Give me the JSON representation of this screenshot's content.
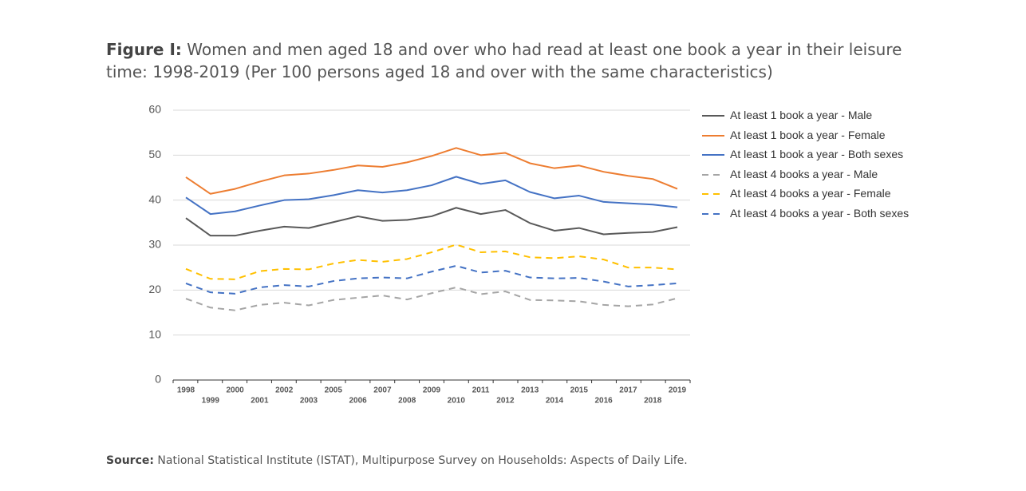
{
  "chart_data": {
    "type": "line",
    "title_label": "Figure I:",
    "title": "Women and men aged 18 and over who had read at least one book a year in their leisure time: 1998-2019 (Per 100 persons aged 18 and over with the same characteristics)",
    "source_label": "Source:",
    "source": "National Statistical Institute (ISTAT), Multipurpose Survey on Households: Aspects of Daily Life.",
    "categories": [
      "1998",
      "1999",
      "2000",
      "2001",
      "2002",
      "2003",
      "2005",
      "2006",
      "2007",
      "2008",
      "2009",
      "2010",
      "2011",
      "2012",
      "2013",
      "2014",
      "2015",
      "2016",
      "2017",
      "2018",
      "2019"
    ],
    "ylim": [
      0,
      60
    ],
    "yticks": [
      0,
      10,
      20,
      30,
      40,
      50,
      60
    ],
    "grid": true,
    "legend": "right",
    "series": [
      {
        "name": "At least 1 book a year - Male",
        "color": "#595959",
        "dash": false,
        "values": [
          36.0,
          32.1,
          32.1,
          33.2,
          34.1,
          33.8,
          35.1,
          36.4,
          35.4,
          35.6,
          36.4,
          38.3,
          36.9,
          37.8,
          34.9,
          33.2,
          33.8,
          32.4,
          32.7,
          32.9,
          34.0
        ]
      },
      {
        "name": "At least 1 book a year - Female",
        "color": "#ed7d31",
        "dash": false,
        "values": [
          45.1,
          41.4,
          42.5,
          44.1,
          45.5,
          45.9,
          46.7,
          47.7,
          47.4,
          48.4,
          49.8,
          51.6,
          50.0,
          50.5,
          48.2,
          47.1,
          47.7,
          46.3,
          45.4,
          44.7,
          42.5
        ]
      },
      {
        "name": "At least 1 book a year - Both sexes",
        "color": "#4472c4",
        "dash": false,
        "values": [
          40.6,
          36.9,
          37.5,
          38.8,
          40.0,
          40.2,
          41.1,
          42.2,
          41.7,
          42.2,
          43.3,
          45.2,
          43.6,
          44.4,
          41.8,
          40.4,
          41.0,
          39.6,
          39.3,
          39.0,
          38.4
        ]
      },
      {
        "name": "At least 4 books a year - Male",
        "color": "#a5a5a5",
        "dash": true,
        "values": [
          18.1,
          16.1,
          15.5,
          16.7,
          17.2,
          16.6,
          17.8,
          18.3,
          18.8,
          17.9,
          19.3,
          20.6,
          19.1,
          19.7,
          17.8,
          17.7,
          17.5,
          16.7,
          16.4,
          16.8,
          18.2
        ]
      },
      {
        "name": "At least 4 books a year - Female",
        "color": "#ffc000",
        "dash": true,
        "values": [
          24.7,
          22.5,
          22.4,
          24.2,
          24.7,
          24.6,
          25.9,
          26.7,
          26.3,
          26.9,
          28.4,
          30.1,
          28.4,
          28.6,
          27.3,
          27.1,
          27.5,
          26.8,
          25.0,
          25.0,
          24.6
        ]
      },
      {
        "name": "At least 4 books a year - Both sexes",
        "color": "#4472c4",
        "dash": true,
        "values": [
          21.5,
          19.5,
          19.2,
          20.6,
          21.1,
          20.8,
          22.0,
          22.6,
          22.8,
          22.6,
          24.1,
          25.4,
          23.9,
          24.3,
          22.8,
          22.6,
          22.7,
          21.9,
          20.8,
          21.1,
          21.5
        ]
      }
    ]
  }
}
